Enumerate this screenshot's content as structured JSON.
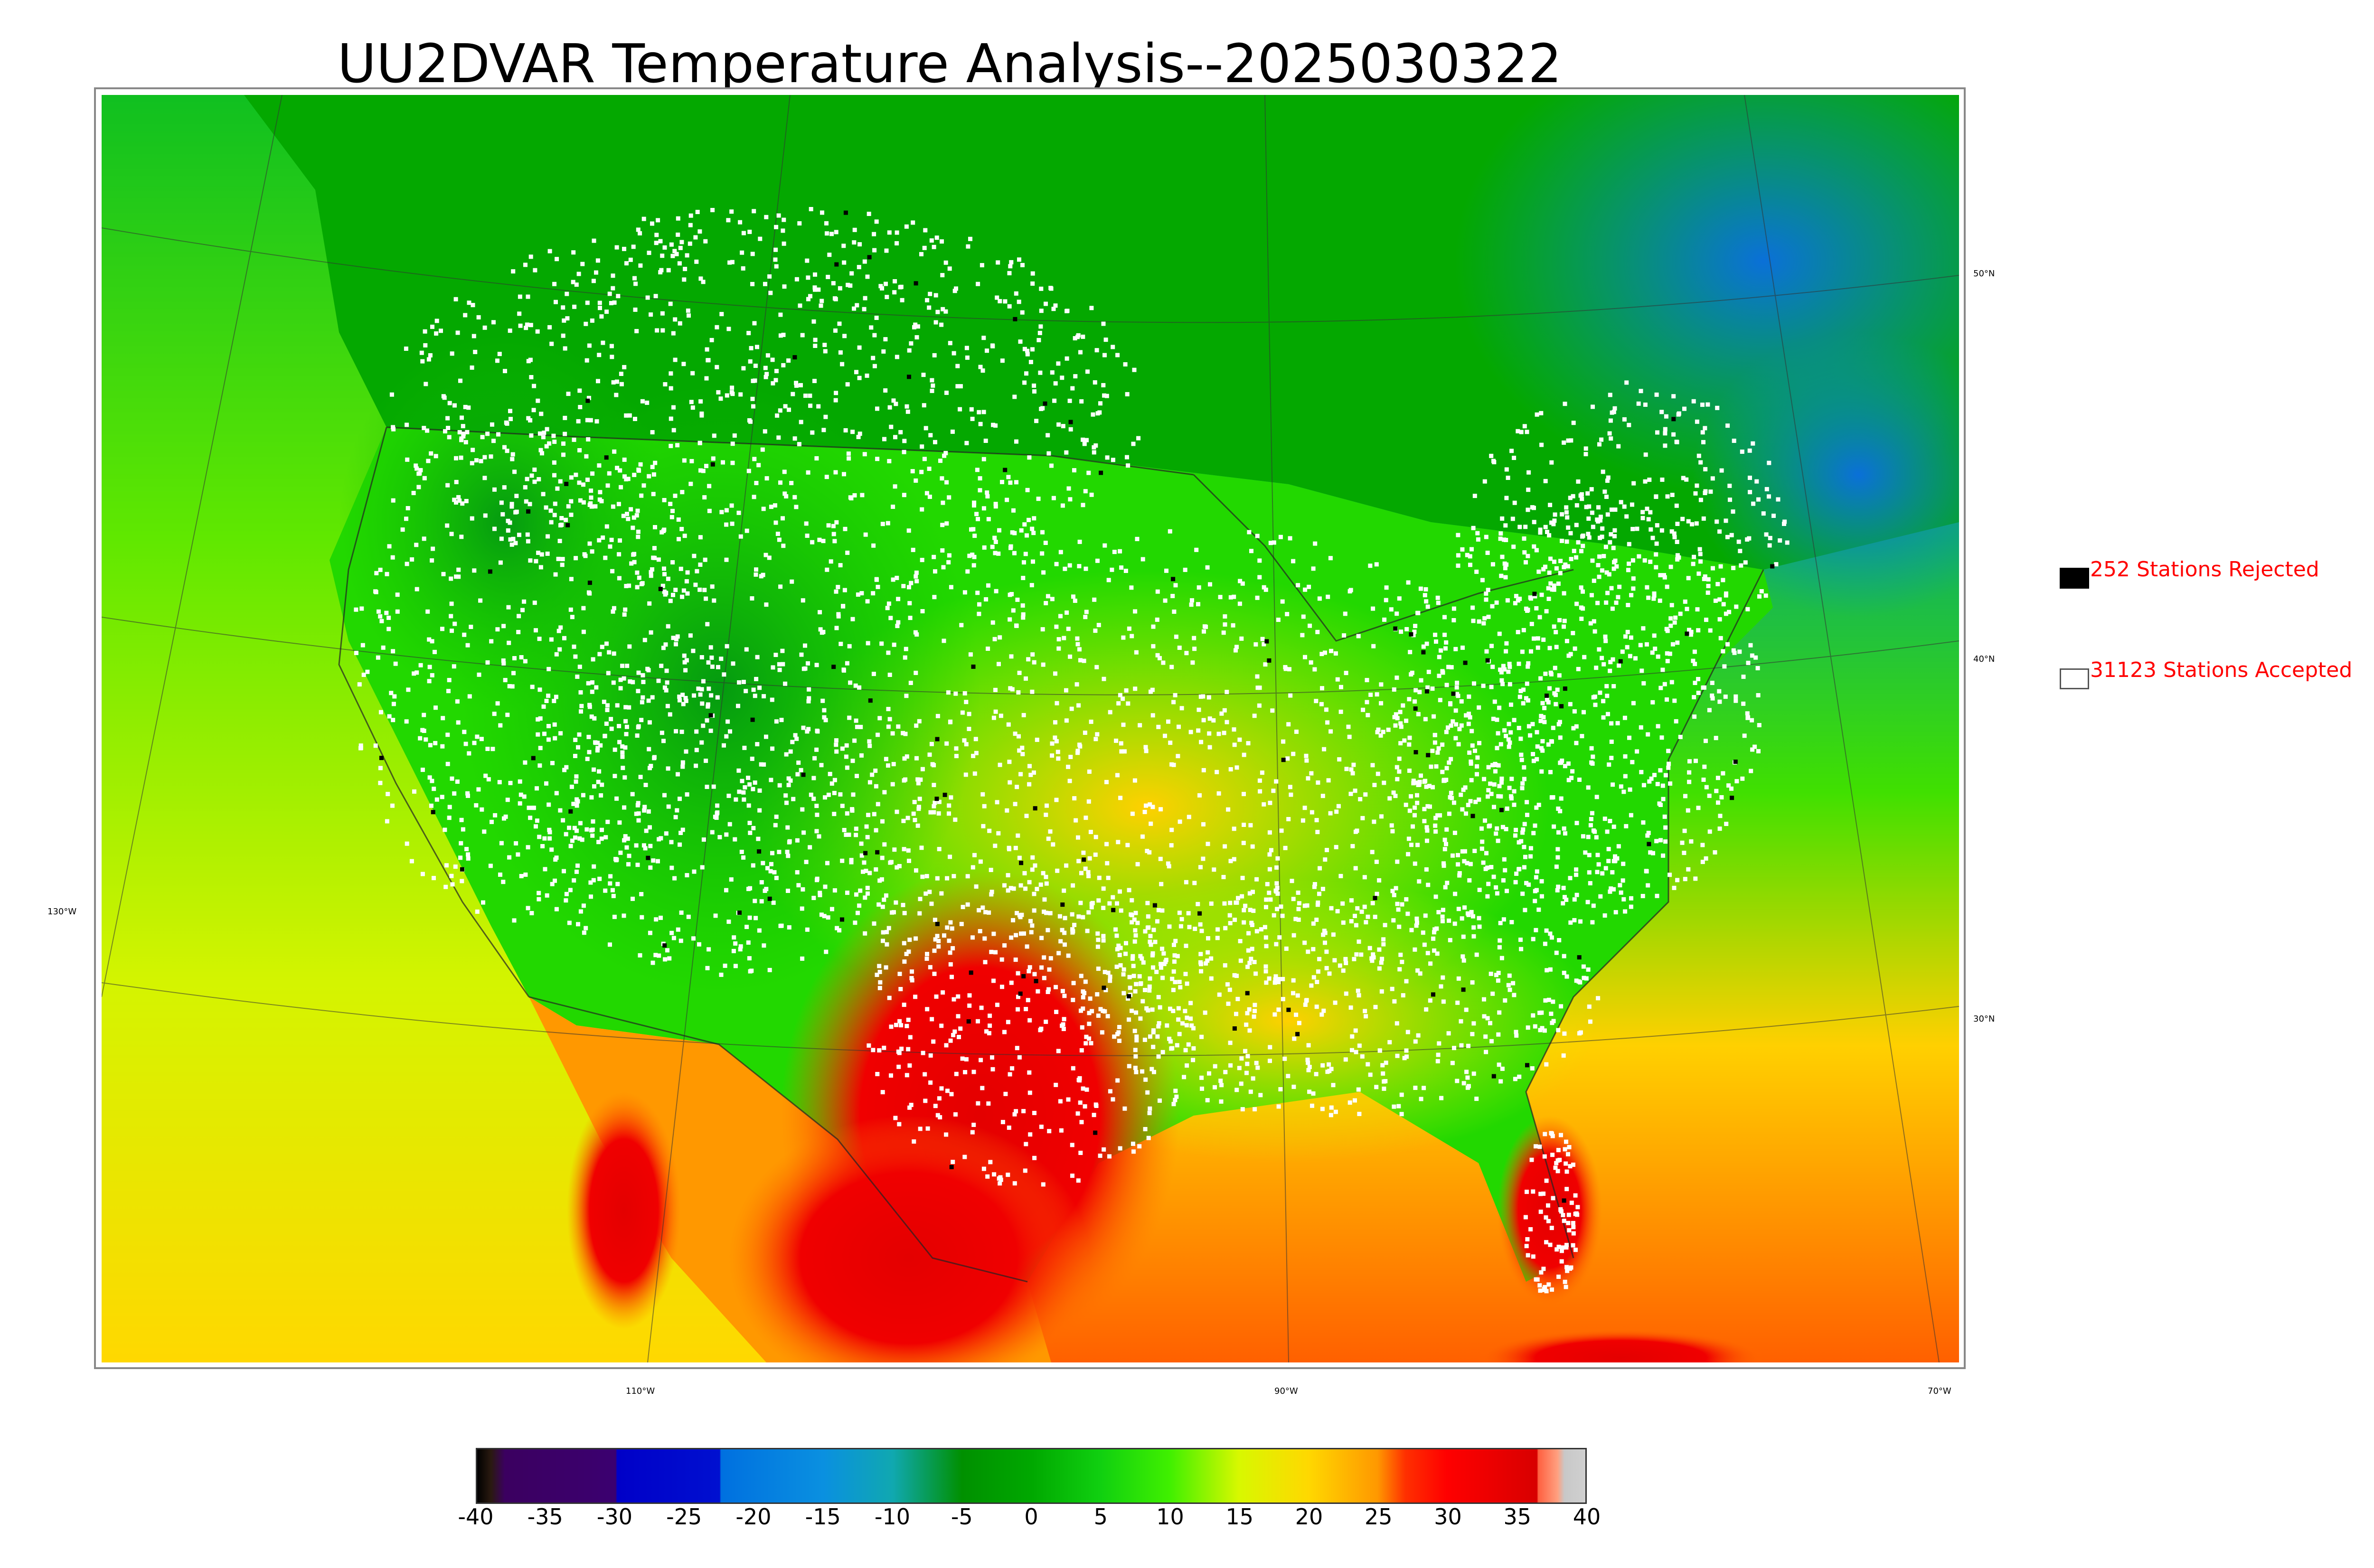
{
  "title": "UU2DVAR Temperature Analysis--2025030322",
  "map": {
    "lat_labels": [
      {
        "text": "50°N",
        "lat": 50
      },
      {
        "text": "40°N",
        "lat": 40
      },
      {
        "text": "30°N",
        "lat": 30
      }
    ],
    "lon_labels": [
      {
        "text": "130°W",
        "lon": -130
      },
      {
        "text": "110°W",
        "lon": -110
      },
      {
        "text": "90°W",
        "lon": -90
      },
      {
        "text": "70°W",
        "lon": -70
      }
    ],
    "field_colors": {
      "cold": "#0a7fd6",
      "cool": "#04a800",
      "mild": "#22e000",
      "warm": "#d4f400",
      "hot": "#ffc800",
      "very_hot": "#ff7000",
      "extreme": "#e40000"
    },
    "station_colors": {
      "accepted": "#ffffff",
      "rejected": "#000000"
    }
  },
  "legend": {
    "rejected": "252 Stations Rejected",
    "accepted": "31123 Stations Accepted",
    "text_color": "#ff0000"
  },
  "colorbar": {
    "range": [
      -40,
      40
    ],
    "ticks": [
      "-40",
      "-35",
      "-30",
      "-25",
      "-20",
      "-15",
      "-10",
      "-5",
      "0",
      "5",
      "10",
      "15",
      "20",
      "25",
      "30",
      "35",
      "40"
    ],
    "stops": [
      {
        "v": -40,
        "color": "#000000"
      },
      {
        "v": -39,
        "color": "#2a1a10"
      },
      {
        "v": -38,
        "color": "#3b0060"
      },
      {
        "v": -30,
        "color": "#3b0070"
      },
      {
        "v": -29.9,
        "color": "#0000c8"
      },
      {
        "v": -22.5,
        "color": "#0010d0"
      },
      {
        "v": -22.4,
        "color": "#0070e0"
      },
      {
        "v": -15,
        "color": "#0a90e0"
      },
      {
        "v": -10,
        "color": "#10a8b0"
      },
      {
        "v": -5,
        "color": "#009000"
      },
      {
        "v": 0,
        "color": "#00a800"
      },
      {
        "v": 5,
        "color": "#10d010"
      },
      {
        "v": 10,
        "color": "#40f000"
      },
      {
        "v": 15,
        "color": "#d8f800"
      },
      {
        "v": 20,
        "color": "#ffd800"
      },
      {
        "v": 25,
        "color": "#ff9800"
      },
      {
        "v": 27,
        "color": "#ff3000"
      },
      {
        "v": 30,
        "color": "#ff0000"
      },
      {
        "v": 36.5,
        "color": "#d80000"
      },
      {
        "v": 36.6,
        "color": "#ff6040"
      },
      {
        "v": 38,
        "color": "#ffa080"
      },
      {
        "v": 38.5,
        "color": "#c8c8c8"
      },
      {
        "v": 40,
        "color": "#d0d0d0"
      }
    ]
  }
}
